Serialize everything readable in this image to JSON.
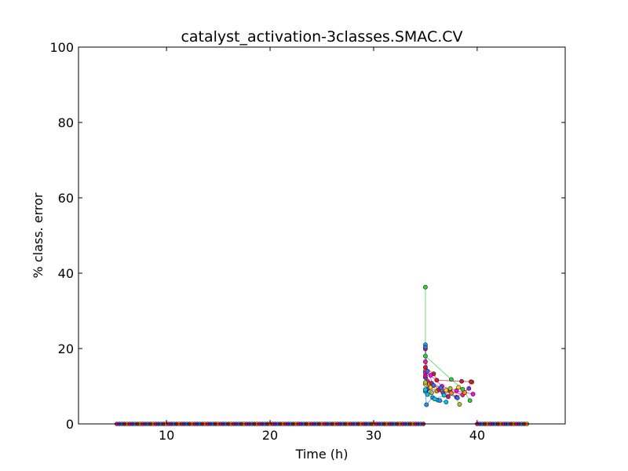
{
  "chart_data": {
    "type": "scatter",
    "title": "catalyst_activation-3classes.SMAC.CV",
    "xlabel": "Time (h)",
    "ylabel": "% class. error",
    "xlim": [
      1.5,
      48.5
    ],
    "ylim": [
      0,
      100
    ],
    "xticks": [
      10,
      20,
      30,
      40
    ],
    "yticks": [
      0,
      20,
      40,
      60,
      80,
      100
    ],
    "grid": false,
    "legend": "none",
    "baseline_segments": [
      {
        "from": 5.2,
        "to": 34.8,
        "y": 0
      },
      {
        "from": 40.0,
        "to": 44.8,
        "y": 0
      }
    ],
    "series": [
      {
        "color": "#2ecc40",
        "points": [
          [
            35.0,
            36.3
          ],
          [
            35.0,
            18.0
          ],
          [
            37.5,
            11.8
          ],
          [
            38.6,
            9.2
          ],
          [
            39.3,
            6.2
          ]
        ]
      },
      {
        "color": "#00bfff",
        "points": [
          [
            35.0,
            21.0
          ],
          [
            35.1,
            8.7
          ],
          [
            36.2,
            6.3
          ],
          [
            37.0,
            5.8
          ]
        ]
      },
      {
        "color": "#ff1493",
        "points": [
          [
            35.0,
            16.5
          ],
          [
            35.2,
            11.2
          ],
          [
            37.4,
            8.7
          ],
          [
            38.6,
            7.7
          ]
        ]
      },
      {
        "color": "#ff8c00",
        "points": [
          [
            35.0,
            14.1
          ],
          [
            35.4,
            10.6
          ],
          [
            36.1,
            8.7
          ],
          [
            37.5,
            8.2
          ],
          [
            38.8,
            8.3
          ],
          [
            39.5,
            11.1
          ]
        ]
      },
      {
        "color": "#8a2be2",
        "points": [
          [
            35.0,
            12.3
          ],
          [
            35.3,
            9.4
          ],
          [
            36.7,
            8.3
          ],
          [
            38.0,
            7.1
          ],
          [
            39.2,
            9.4
          ]
        ]
      },
      {
        "color": "#ffd700",
        "points": [
          [
            35.0,
            10.5
          ],
          [
            35.5,
            9.7
          ],
          [
            37.0,
            8.9
          ],
          [
            38.2,
            9.7
          ]
        ]
      },
      {
        "color": "#dc143c",
        "points": [
          [
            35.0,
            15.0
          ],
          [
            35.8,
            13.3
          ],
          [
            36.1,
            11.6
          ],
          [
            38.5,
            11.3
          ],
          [
            39.4,
            11.2
          ]
        ]
      },
      {
        "color": "#1e90ff",
        "points": [
          [
            35.0,
            8.6
          ],
          [
            35.1,
            5.1
          ],
          [
            35.7,
            7.0
          ],
          [
            36.4,
            6.2
          ]
        ]
      },
      {
        "color": "#ff00ff",
        "points": [
          [
            35.0,
            13.6
          ],
          [
            35.5,
            12.9
          ],
          [
            36.6,
            10.0
          ],
          [
            38.0,
            8.8
          ],
          [
            39.6,
            7.9
          ]
        ]
      },
      {
        "color": "#9acd32",
        "points": [
          [
            35.0,
            11.0
          ],
          [
            35.6,
            8.3
          ],
          [
            36.5,
            9.1
          ],
          [
            37.4,
            9.4
          ],
          [
            38.3,
            5.2
          ]
        ]
      },
      {
        "color": "#00ced1",
        "points": [
          [
            35.0,
            9.1
          ],
          [
            35.2,
            7.8
          ],
          [
            35.9,
            6.6
          ],
          [
            36.8,
            7.6
          ]
        ]
      },
      {
        "color": "#c71585",
        "points": [
          [
            35.0,
            19.9
          ],
          [
            35.0,
            12.8
          ],
          [
            35.6,
            10.8
          ],
          [
            36.3,
            9.1
          ],
          [
            37.2,
            7.2
          ]
        ]
      },
      {
        "color": "#4169e1",
        "points": [
          [
            35.0,
            20.4
          ],
          [
            35.2,
            14.0
          ],
          [
            35.8,
            10.2
          ],
          [
            36.5,
            9.6
          ],
          [
            38.1,
            6.9
          ]
        ]
      }
    ]
  }
}
